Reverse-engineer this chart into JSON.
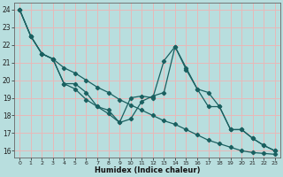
{
  "xlabel": "Humidex (Indice chaleur)",
  "background_color": "#b8dede",
  "grid_color": "#e8b8b8",
  "line_color": "#1a6060",
  "xlim": [
    -0.5,
    23.5
  ],
  "ylim": [
    15.6,
    24.4
  ],
  "yticks": [
    16,
    17,
    18,
    19,
    20,
    21,
    22,
    23,
    24
  ],
  "xticks": [
    0,
    1,
    2,
    3,
    4,
    5,
    6,
    7,
    8,
    9,
    10,
    11,
    12,
    13,
    14,
    15,
    16,
    17,
    18,
    19,
    20,
    21,
    22,
    23
  ],
  "series1_y": [
    24.0,
    22.5,
    21.5,
    21.2,
    19.8,
    19.8,
    19.3,
    18.5,
    18.1,
    17.6,
    19.0,
    19.1,
    19.0,
    21.1,
    21.9,
    20.7,
    19.5,
    19.3,
    18.5,
    17.2,
    17.2,
    16.7,
    16.3,
    16.0
  ],
  "series2_y": [
    24.0,
    22.5,
    21.5,
    21.2,
    19.8,
    19.5,
    18.9,
    18.5,
    18.3,
    17.6,
    17.8,
    18.8,
    19.1,
    19.3,
    21.9,
    20.6,
    19.5,
    18.5,
    18.5,
    17.2,
    17.2,
    16.7,
    16.3,
    16.0
  ],
  "series3_y": [
    24.0,
    22.5,
    21.5,
    21.2,
    20.7,
    20.4,
    20.0,
    19.6,
    19.3,
    18.9,
    18.6,
    18.3,
    18.0,
    17.7,
    17.5,
    17.2,
    16.9,
    16.6,
    16.4,
    16.2,
    16.0,
    15.9,
    15.85,
    15.8
  ]
}
